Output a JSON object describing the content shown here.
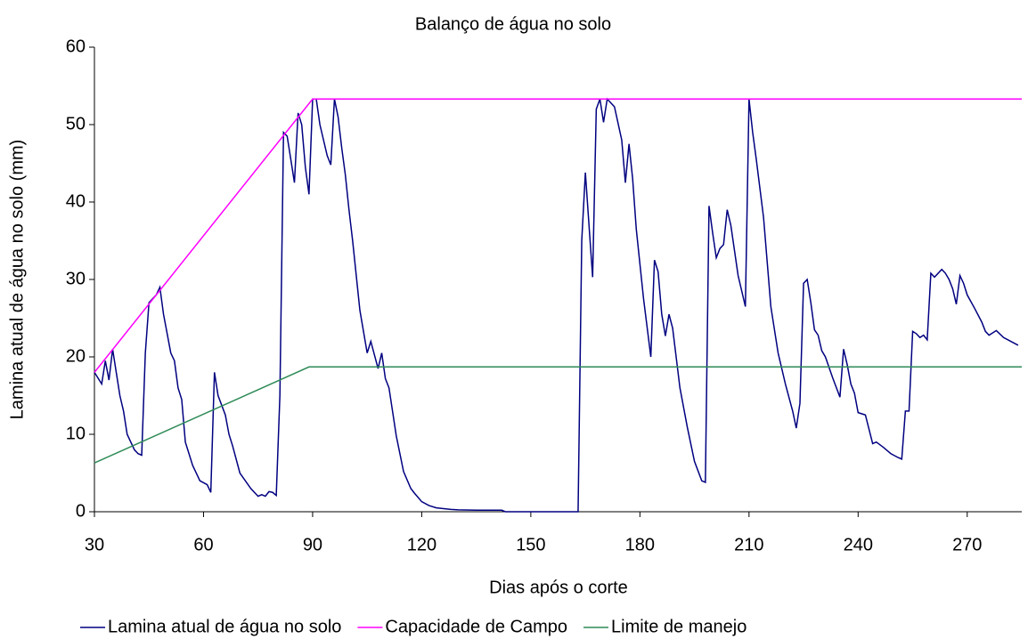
{
  "chart_data": {
    "type": "line",
    "title": "Balanço de água no solo",
    "x_label": "Dias após o corte",
    "y_label": "Lamina atual de água no solo (mm)",
    "xlim": [
      30,
      285
    ],
    "ylim": [
      0,
      60
    ],
    "xticks": [
      30,
      60,
      90,
      120,
      150,
      180,
      210,
      240,
      270
    ],
    "yticks": [
      0,
      10,
      20,
      30,
      40,
      50,
      60
    ],
    "grid": false,
    "legend": "bottom",
    "series": [
      {
        "name": "Lamina atual de água no solo",
        "color": "#000080",
        "x": [
          30,
          32,
          33,
          34,
          35,
          36,
          37,
          38,
          39,
          41,
          42,
          43,
          44,
          45,
          47,
          48,
          49,
          50,
          51,
          52,
          53,
          54,
          55,
          57,
          59,
          61,
          62,
          63,
          64,
          66,
          67,
          68,
          70,
          73,
          75,
          76,
          77,
          78,
          79,
          80,
          81,
          82,
          83,
          84,
          85,
          86,
          87,
          88,
          89,
          90,
          91,
          92,
          94,
          95,
          96,
          97,
          98,
          99,
          100,
          101,
          103,
          105,
          106,
          108,
          109,
          110,
          111,
          113,
          114,
          115,
          117,
          118,
          120,
          122,
          124,
          126,
          128,
          130,
          135,
          142,
          143,
          150,
          162,
          163,
          164,
          165,
          166,
          167,
          168,
          169,
          170,
          171,
          173,
          175,
          176,
          177,
          178,
          179,
          181,
          183,
          184,
          185,
          186,
          187,
          188,
          189,
          191,
          193,
          195,
          197,
          198,
          199,
          200,
          201,
          202,
          203,
          204,
          205,
          207,
          209,
          210,
          211,
          212,
          214,
          216,
          218,
          220,
          222,
          223,
          224,
          225,
          226,
          227,
          228,
          229,
          230,
          231,
          233,
          235,
          236,
          237,
          238,
          239,
          240,
          242,
          244,
          245,
          247,
          249,
          251,
          252,
          253,
          254,
          255,
          256,
          257,
          258,
          259,
          260,
          261,
          263,
          264,
          265,
          266,
          267,
          268,
          269,
          270,
          272,
          274,
          275,
          276,
          278,
          280,
          284
        ],
        "values": [
          18,
          16.5,
          19.5,
          17,
          21,
          18,
          15,
          13,
          10,
          8,
          7.5,
          7.3,
          20.5,
          27,
          28,
          29,
          25.5,
          23,
          20.5,
          19.5,
          16,
          14.5,
          9,
          6,
          4,
          3.5,
          2.5,
          18,
          15,
          12.5,
          10,
          8.5,
          5,
          3,
          2,
          2.2,
          2,
          2.6,
          2.5,
          2.1,
          15,
          49,
          48.5,
          45.5,
          42.5,
          51.5,
          50,
          44.5,
          41,
          53.3,
          53.3,
          50,
          46,
          44.8,
          53.3,
          51,
          47,
          43.5,
          39,
          35,
          26,
          20.5,
          22,
          18.5,
          20.5,
          17.2,
          16,
          9.8,
          7.5,
          5.2,
          3,
          2.4,
          1.3,
          0.8,
          0.5,
          0.4,
          0.3,
          0.25,
          0.2,
          0.2,
          0,
          0,
          0,
          0,
          35,
          43.8,
          37,
          30.3,
          52,
          53.3,
          50.3,
          53.3,
          52.3,
          48,
          42.5,
          47.5,
          43,
          36.5,
          27.5,
          20,
          32.5,
          31,
          25.5,
          22.7,
          25.5,
          23.7,
          16,
          11,
          6.5,
          4,
          3.8,
          39.5,
          36,
          32.8,
          34,
          34.5,
          39,
          37,
          30.5,
          26.5,
          53.3,
          49,
          45.5,
          38,
          26.5,
          20.5,
          16.5,
          13,
          10.8,
          14,
          29.5,
          30,
          27,
          23.5,
          22.8,
          20.8,
          20,
          17.3,
          14.8,
          21,
          19,
          16.5,
          15.3,
          12.8,
          12.5,
          8.8,
          9,
          8.3,
          7.5,
          7,
          6.8,
          13,
          13,
          23.3,
          23,
          22.5,
          22.8,
          22.2,
          30.8,
          30.3,
          31.3,
          30.8,
          30,
          28.8,
          26.8,
          30.5,
          29.5,
          28,
          26.3,
          24.5,
          23.3,
          22.8,
          23.4,
          22.5,
          21.5
        ]
      },
      {
        "name": "Capacidade de Campo",
        "color": "#ff00ff",
        "x": [
          30,
          90,
          285
        ],
        "values": [
          18,
          53.3,
          53.3
        ]
      },
      {
        "name": "Limite de manejo",
        "color": "#2e8b57",
        "x": [
          30,
          89,
          285
        ],
        "values": [
          6.3,
          18.7,
          18.7
        ]
      }
    ]
  }
}
